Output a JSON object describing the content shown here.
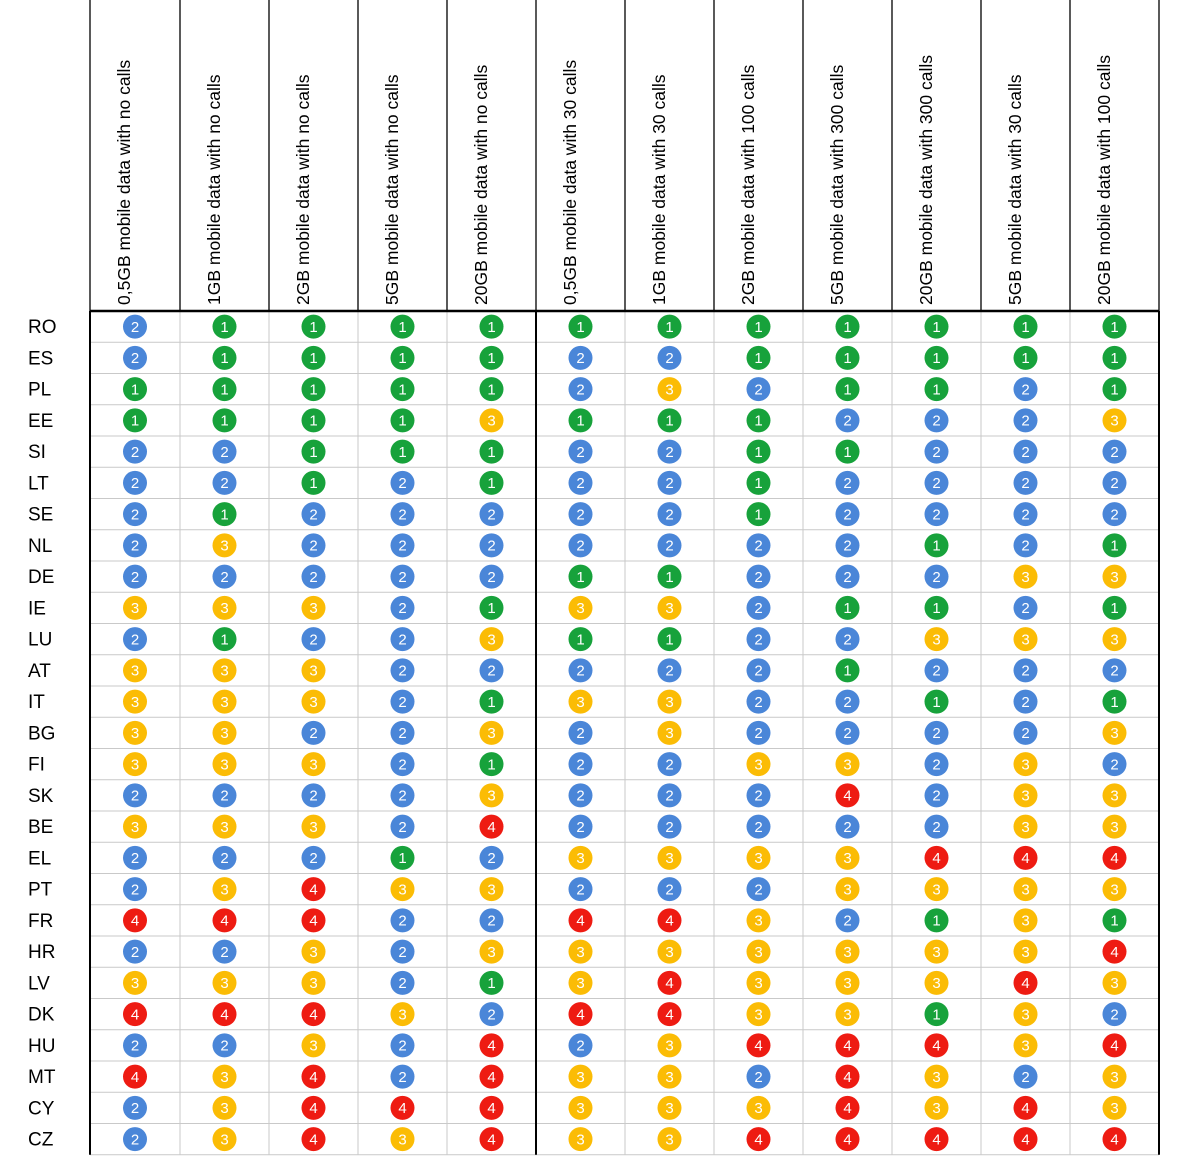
{
  "chart_data": {
    "type": "table",
    "columns": [
      "0,5GB mobile data with no calls",
      "1GB mobile data with no calls",
      "2GB mobile data with no calls",
      "5GB mobile data with no calls",
      "20GB mobile data with no calls",
      "0,5GB mobile data with 30 calls",
      "1GB mobile data with 30 calls",
      "2GB mobile data with 100 calls",
      "5GB mobile data with 300 calls",
      "20GB mobile data with 300 calls",
      "5GB mobile data with 30 calls",
      "20GB mobile data with 100 calls"
    ],
    "rows": [
      {
        "label": "RO",
        "values": [
          2,
          1,
          1,
          1,
          1,
          1,
          1,
          1,
          1,
          1,
          1,
          1
        ]
      },
      {
        "label": "ES",
        "values": [
          2,
          1,
          1,
          1,
          1,
          2,
          2,
          1,
          1,
          1,
          1,
          1
        ]
      },
      {
        "label": "PL",
        "values": [
          1,
          1,
          1,
          1,
          1,
          2,
          3,
          2,
          1,
          1,
          2,
          1
        ]
      },
      {
        "label": "EE",
        "values": [
          1,
          1,
          1,
          1,
          3,
          1,
          1,
          1,
          2,
          2,
          2,
          3
        ]
      },
      {
        "label": "SI",
        "values": [
          2,
          2,
          1,
          1,
          1,
          2,
          2,
          1,
          1,
          2,
          2,
          2
        ]
      },
      {
        "label": "LT",
        "values": [
          2,
          2,
          1,
          2,
          1,
          2,
          2,
          1,
          2,
          2,
          2,
          2
        ]
      },
      {
        "label": "SE",
        "values": [
          2,
          1,
          2,
          2,
          2,
          2,
          2,
          1,
          2,
          2,
          2,
          2
        ]
      },
      {
        "label": "NL",
        "values": [
          2,
          3,
          2,
          2,
          2,
          2,
          2,
          2,
          2,
          1,
          2,
          1
        ]
      },
      {
        "label": "DE",
        "values": [
          2,
          2,
          2,
          2,
          2,
          1,
          1,
          2,
          2,
          2,
          3,
          3
        ]
      },
      {
        "label": "IE",
        "values": [
          3,
          3,
          3,
          2,
          1,
          3,
          3,
          2,
          1,
          1,
          2,
          1
        ]
      },
      {
        "label": "LU",
        "values": [
          2,
          1,
          2,
          2,
          3,
          1,
          1,
          2,
          2,
          3,
          3,
          3
        ]
      },
      {
        "label": "AT",
        "values": [
          3,
          3,
          3,
          2,
          2,
          2,
          2,
          2,
          1,
          2,
          2,
          2
        ]
      },
      {
        "label": "IT",
        "values": [
          3,
          3,
          3,
          2,
          1,
          3,
          3,
          2,
          2,
          1,
          2,
          1
        ]
      },
      {
        "label": "BG",
        "values": [
          3,
          3,
          2,
          2,
          3,
          2,
          3,
          2,
          2,
          2,
          2,
          3
        ]
      },
      {
        "label": "FI",
        "values": [
          3,
          3,
          3,
          2,
          1,
          2,
          2,
          3,
          3,
          2,
          3,
          2
        ]
      },
      {
        "label": "SK",
        "values": [
          2,
          2,
          2,
          2,
          3,
          2,
          2,
          2,
          4,
          2,
          3,
          3
        ]
      },
      {
        "label": "BE",
        "values": [
          3,
          3,
          3,
          2,
          4,
          2,
          2,
          2,
          2,
          2,
          3,
          3
        ]
      },
      {
        "label": "EL",
        "values": [
          2,
          2,
          2,
          1,
          2,
          3,
          3,
          3,
          3,
          4,
          4,
          4
        ]
      },
      {
        "label": "PT",
        "values": [
          2,
          3,
          4,
          3,
          3,
          2,
          2,
          2,
          3,
          3,
          3,
          3
        ]
      },
      {
        "label": "FR",
        "values": [
          4,
          4,
          4,
          2,
          2,
          4,
          4,
          3,
          2,
          1,
          3,
          1
        ]
      },
      {
        "label": "HR",
        "values": [
          2,
          2,
          3,
          2,
          3,
          3,
          3,
          3,
          3,
          3,
          3,
          4
        ]
      },
      {
        "label": "LV",
        "values": [
          3,
          3,
          3,
          2,
          1,
          3,
          4,
          3,
          3,
          3,
          4,
          3
        ]
      },
      {
        "label": "DK",
        "values": [
          4,
          4,
          4,
          3,
          2,
          4,
          4,
          3,
          3,
          1,
          3,
          2
        ]
      },
      {
        "label": "HU",
        "values": [
          2,
          2,
          3,
          2,
          4,
          2,
          3,
          4,
          4,
          4,
          3,
          4
        ]
      },
      {
        "label": "MT",
        "values": [
          4,
          3,
          4,
          2,
          4,
          3,
          3,
          2,
          4,
          3,
          2,
          3
        ]
      },
      {
        "label": "CY",
        "values": [
          2,
          3,
          4,
          4,
          4,
          3,
          3,
          3,
          4,
          3,
          4,
          3
        ]
      },
      {
        "label": "CZ",
        "values": [
          2,
          3,
          4,
          3,
          4,
          3,
          3,
          4,
          4,
          4,
          4,
          4
        ]
      }
    ],
    "colors": {
      "1": "#17a23b",
      "2": "#4a86d8",
      "3": "#fbbc05",
      "4": "#ee1b12"
    },
    "grid": true
  }
}
